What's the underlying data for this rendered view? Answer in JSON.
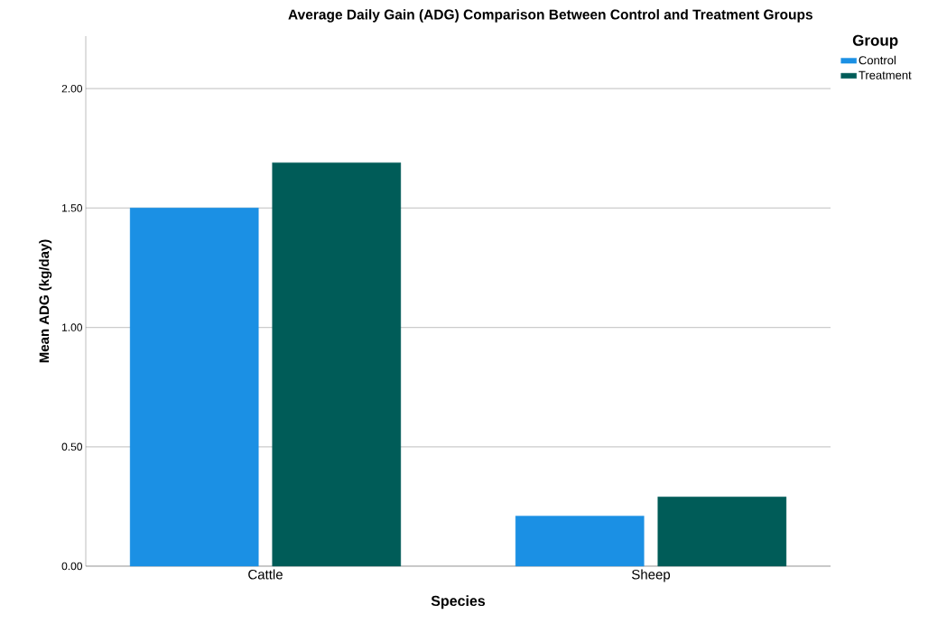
{
  "chart_data": {
    "type": "bar",
    "title": "Average Daily Gain (ADG) Comparison Between Control and Treatment Groups",
    "xlabel": "Species",
    "ylabel": "Mean ADG (kg/day)",
    "legend_title": "Group",
    "categories": [
      "Cattle",
      "Sheep"
    ],
    "series": [
      {
        "name": "Control",
        "color": "#1b90e4",
        "values": [
          1.5,
          0.21
        ]
      },
      {
        "name": "Treatment",
        "color": "#005c58",
        "values": [
          1.69,
          0.29
        ]
      }
    ],
    "ylim": [
      0,
      2.22
    ],
    "yticks": [
      {
        "value": 0,
        "label": "0.00"
      },
      {
        "value": 0.5,
        "label": "0.50"
      },
      {
        "value": 1,
        "label": "1.00"
      },
      {
        "value": 1.5,
        "label": "1.50"
      },
      {
        "value": 2,
        "label": "2.00"
      }
    ],
    "grid": "y",
    "legend": "top right"
  }
}
